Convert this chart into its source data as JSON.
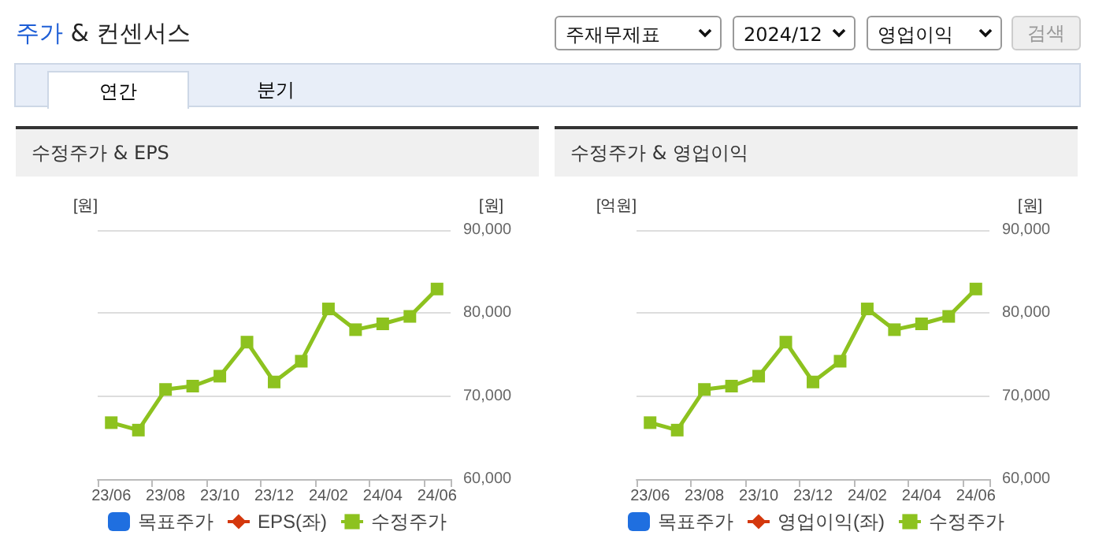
{
  "chart_data": [
    {
      "type": "other",
      "title": "주가 & 컨센서스",
      "annotations": [
        "주재무제표",
        "2024/12",
        "영업이익",
        "검색",
        "연간",
        "분기"
      ]
    },
    {
      "type": "line",
      "title": "수정주가 & EPS",
      "ylabel": "[원]",
      "y2label": "[원]",
      "categories": [
        "23/06",
        null,
        "23/08",
        null,
        "23/10",
        null,
        "23/12",
        null,
        "24/02",
        null,
        "24/04",
        null,
        "24/06"
      ],
      "series": [
        {
          "name": "목표주가",
          "type": "bar",
          "color": "#1f6fe0",
          "axis": "y2",
          "values": [
            null,
            null,
            null,
            null,
            null,
            null,
            null,
            null,
            null,
            null,
            null,
            null,
            null
          ]
        },
        {
          "name": "EPS(좌)",
          "type": "line",
          "color": "#d4380d",
          "marker": "diamond",
          "values": [
            null,
            null,
            null,
            null,
            null,
            null,
            null,
            null,
            null,
            null,
            null,
            null,
            null
          ]
        },
        {
          "name": "수정주가",
          "type": "line",
          "color": "#8dc21f",
          "marker": "square",
          "axis": "y2",
          "values": [
            66800,
            65900,
            70800,
            71200,
            72400,
            76500,
            71700,
            74200,
            80500,
            78000,
            78700,
            79600,
            82900
          ]
        }
      ],
      "y2lim": [
        60000,
        90000
      ],
      "y2ticks": [
        {
          "value": 60000,
          "label": "60,000"
        },
        {
          "value": 70000,
          "label": "70,000"
        },
        {
          "value": 80000,
          "label": "80,000"
        },
        {
          "value": 90000,
          "label": "90,000"
        }
      ],
      "grid": "y",
      "legend": "bottom"
    },
    {
      "type": "line",
      "title": "수정주가 & 영업이익",
      "ylabel": "[억원]",
      "y2label": "[원]",
      "categories": [
        "23/06",
        null,
        "23/08",
        null,
        "23/10",
        null,
        "23/12",
        null,
        "24/02",
        null,
        "24/04",
        null,
        "24/06"
      ],
      "series": [
        {
          "name": "목표주가",
          "type": "bar",
          "color": "#1f6fe0",
          "axis": "y2",
          "values": [
            null,
            null,
            null,
            null,
            null,
            null,
            null,
            null,
            null,
            null,
            null,
            null,
            null
          ]
        },
        {
          "name": "영업이익(좌)",
          "type": "line",
          "color": "#d4380d",
          "marker": "diamond",
          "values": [
            null,
            null,
            null,
            null,
            null,
            null,
            null,
            null,
            null,
            null,
            null,
            null,
            null
          ]
        },
        {
          "name": "수정주가",
          "type": "line",
          "color": "#8dc21f",
          "marker": "square",
          "axis": "y2",
          "values": [
            66800,
            65900,
            70800,
            71200,
            72400,
            76500,
            71700,
            74200,
            80500,
            78000,
            78700,
            79600,
            82900
          ]
        }
      ],
      "y2lim": [
        60000,
        90000
      ],
      "y2ticks": [
        {
          "value": 60000,
          "label": "60,000"
        },
        {
          "value": 70000,
          "label": "70,000"
        },
        {
          "value": 80000,
          "label": "80,000"
        },
        {
          "value": 90000,
          "label": "90,000"
        }
      ],
      "grid": "y",
      "legend": "bottom"
    }
  ]
}
